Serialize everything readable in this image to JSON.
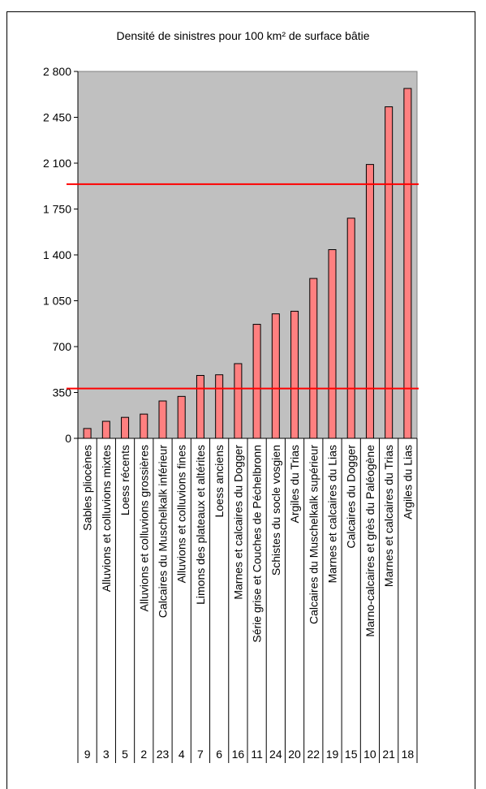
{
  "chart_data": {
    "type": "bar",
    "title": "Densité de sinistres pour 100 km² de surface bâtie",
    "categories": [
      "Sables pliocènes",
      "Alluvions et colluvions mixtes",
      "Loess récents",
      "Alluvions et colluvions grossières",
      "Calcaires du Muschelkalk inférieur",
      "Alluvions et colluvions fines",
      "Limons des plateaux et altérites",
      "Loess anciens",
      "Marnes et calcaires du Dogger",
      "Série grise et Couches de Péchelbronn",
      "Schistes du socle vosgien",
      "Argiles du Trias",
      "Calcaires du Muschelkalk supérieur",
      "Marnes et calcaires du Lias",
      "Calcaires du Dogger",
      "Marno-calcaires et grès du Paléogène",
      "Marnes et calcaires du Trias",
      "Argiles du Lias"
    ],
    "values": [
      75,
      130,
      160,
      185,
      285,
      320,
      480,
      485,
      570,
      870,
      950,
      970,
      1220,
      1440,
      1680,
      2090,
      2530,
      2670
    ],
    "table_row": [
      "9",
      "3",
      "5",
      "2",
      "23",
      "4",
      "7",
      "6",
      "16",
      "11",
      "24",
      "20",
      "22",
      "19",
      "15",
      "10",
      "21",
      "18"
    ],
    "yticks": [
      "2 800",
      "2 450",
      "2 100",
      "1 750",
      "1 400",
      "1 050",
      "700",
      "350",
      "0"
    ],
    "ytick_values": [
      2800,
      2450,
      2100,
      1750,
      1400,
      1050,
      700,
      350,
      0
    ],
    "ylim": [
      0,
      2800
    ],
    "reference_lines": [
      1940,
      380
    ],
    "colors": {
      "bar_fill": "#ff8080",
      "bar_edge": "#000000",
      "plot_bg": "#c0c0c0",
      "reference_line": "#ff0000"
    }
  }
}
